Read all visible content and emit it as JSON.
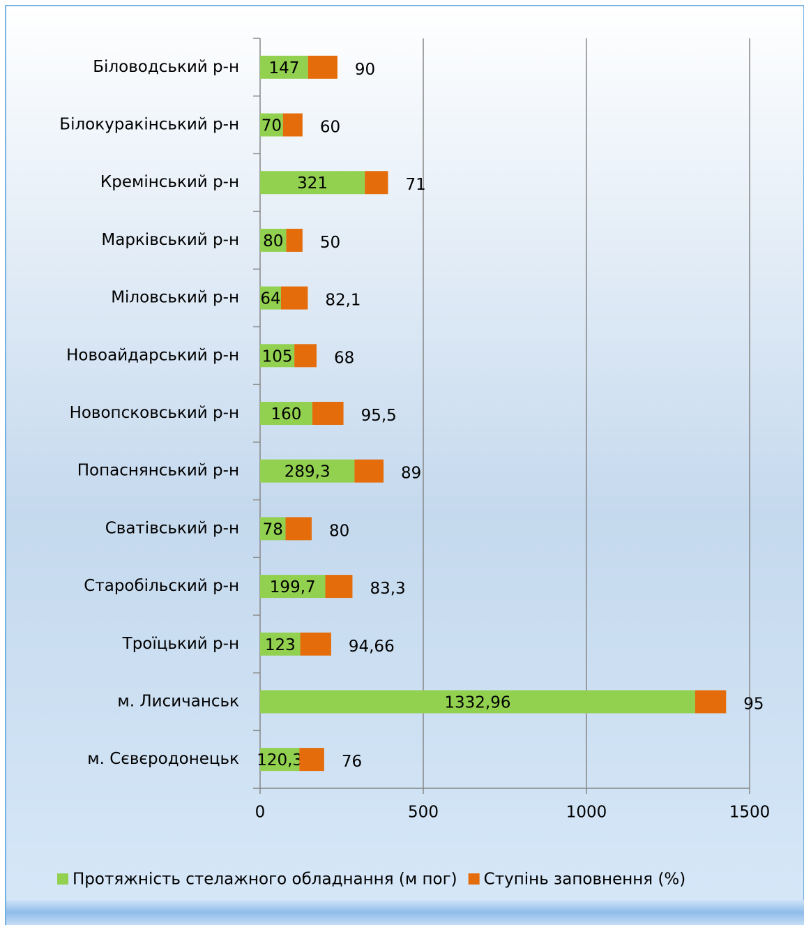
{
  "chart_data": {
    "type": "stacked-barh",
    "categories": [
      "Біловодський р-н",
      "Білокуракінський р-н",
      "Кремінський р-н",
      "Марківський р-н",
      "Міловський р-н",
      "Новоайдарський р-н",
      "Новопсковський р-н",
      "Попаснянський р-н",
      "Сватівський р-н",
      "Старобільский р-н",
      "Троїцький р-н",
      "м. Лисичанськ",
      "м. Сєвєродонецьк"
    ],
    "series": [
      {
        "name": "Протяжність стелажного обладнання (м пог)",
        "color": "#92d050",
        "values": [
          147,
          70,
          321,
          80,
          64,
          105,
          160,
          289.3,
          78,
          199.7,
          123,
          1332.96,
          120.3
        ],
        "value_labels": [
          "147",
          "70",
          "321",
          "80",
          "64",
          "105",
          "160",
          "289,3",
          "78",
          "199,7",
          "123",
          "1332,96",
          "120,3"
        ]
      },
      {
        "name": "Ступінь заповнення (%)",
        "color": "#e46c0a",
        "values": [
          90,
          60,
          71,
          50,
          82.1,
          68,
          95.5,
          89,
          80,
          83.3,
          94.66,
          95,
          76
        ],
        "value_labels": [
          "90",
          "60",
          "71",
          "50",
          "82,1",
          "68",
          "95,5",
          "89",
          "80",
          "83,3",
          "94,66",
          "95",
          "76"
        ]
      }
    ],
    "xlim": [
      0,
      1500
    ],
    "xticks": [
      0,
      500,
      1000,
      1500
    ],
    "grid": true,
    "legend": "bottom"
  }
}
